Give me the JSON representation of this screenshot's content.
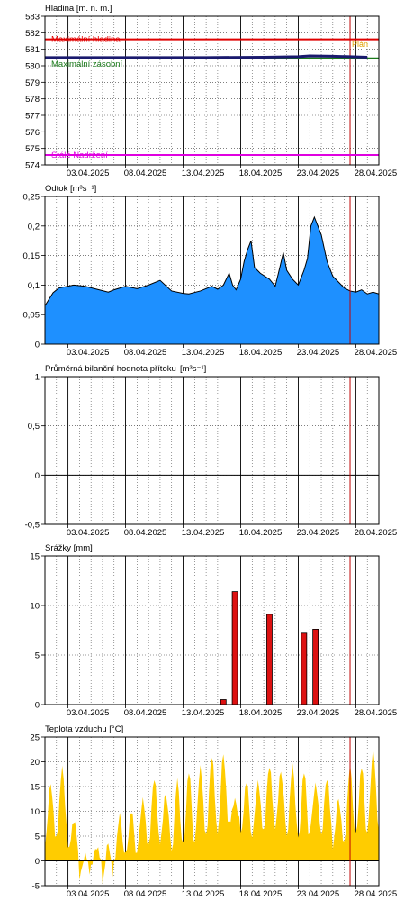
{
  "dates": [
    "03.04.2025",
    "08.04.2025",
    "13.04.2025",
    "18.04.2025",
    "23.04.2025",
    "28.04.2025"
  ],
  "colors": {
    "grid_major": "#000000",
    "grid_minor": "#000000",
    "now_line": "#c00000",
    "level_line": "#1a1a6e",
    "max_level": "#e00000",
    "max_storage": "#1a7a1a",
    "dead_storage": "#e000e0",
    "flow_fill": "#1e90ff",
    "flow_line": "#000000",
    "precip_fill": "#dd1111",
    "temp_fill": "#ffcc00"
  },
  "chart_data": [
    {
      "type": "line",
      "title": "Hladina [m. n. m.]",
      "ylim": [
        574,
        583
      ],
      "yticks": [
        583,
        582,
        581,
        580,
        579,
        578,
        577,
        576,
        575,
        574
      ],
      "x_start": "01.04.2025",
      "x_end": "30.04.2025",
      "reference_lines": [
        {
          "name": "Maximální hladina",
          "value": 581.6,
          "color_key": "max_level"
        },
        {
          "name": "Maximální zásobní",
          "value": 580.45,
          "color_key": "max_storage"
        },
        {
          "name": "Stálé Nadržení",
          "value": 574.6,
          "color_key": "dead_storage"
        }
      ],
      "now_label": "Plán",
      "series": [
        {
          "x": [
            "01.04.2025",
            "05.04.2025",
            "10.04.2025",
            "15.04.2025",
            "20.04.2025",
            "23.04.2025",
            "24.04.2025",
            "26.04.2025",
            "29.04.2025"
          ],
          "values": [
            580.5,
            580.5,
            580.5,
            580.5,
            580.52,
            580.55,
            580.6,
            580.58,
            580.52
          ]
        }
      ]
    },
    {
      "type": "area",
      "title": "Odtok [m³s⁻¹]",
      "ylim": [
        0,
        0.25
      ],
      "yticks": [
        "0,25",
        "0,2",
        "0,15",
        "0,1",
        "0,05",
        "0"
      ],
      "ytick_values": [
        0.25,
        0.2,
        0.15,
        0.1,
        0.05,
        0
      ],
      "x_start": "01.04.2025",
      "x_end": "30.04.2025",
      "series": [
        {
          "x": [
            0,
            0.7,
            1.2,
            2.5,
            3.5,
            4.5,
            5.5,
            6,
            7,
            8,
            9,
            10,
            11,
            12,
            12.5,
            13.5,
            14.5,
            15,
            15.5,
            16,
            16.3,
            16.6,
            17,
            17.3,
            17.6,
            17.9,
            18.2,
            18.7,
            19.5,
            20,
            20.4,
            20.7,
            21,
            21.5,
            22,
            22.5,
            22.8,
            23.1,
            23.4,
            23.7,
            24,
            24.5,
            25,
            25.5,
            26,
            26.5,
            27,
            27.5,
            28,
            28.5,
            29
          ],
          "values": [
            0.065,
            0.087,
            0.095,
            0.1,
            0.098,
            0.093,
            0.088,
            0.092,
            0.098,
            0.094,
            0.1,
            0.108,
            0.09,
            0.086,
            0.085,
            0.09,
            0.098,
            0.093,
            0.1,
            0.12,
            0.1,
            0.092,
            0.11,
            0.14,
            0.16,
            0.175,
            0.13,
            0.12,
            0.11,
            0.098,
            0.13,
            0.155,
            0.125,
            0.11,
            0.1,
            0.125,
            0.145,
            0.2,
            0.215,
            0.2,
            0.185,
            0.14,
            0.115,
            0.105,
            0.095,
            0.09,
            0.088,
            0.092,
            0.085,
            0.088,
            0.085
          ]
        }
      ]
    },
    {
      "type": "bar",
      "title": "Průměrná bilanční hodnota přítoku",
      "unit": "[m³s⁻¹]",
      "ylim": [
        -0.5,
        1
      ],
      "yticks": [
        "1",
        "0,5",
        "0",
        "-0,5"
      ],
      "ytick_values": [
        1,
        0.5,
        0,
        -0.5
      ],
      "x_start": "01.04.2025",
      "x_end": "30.04.2025",
      "values": []
    },
    {
      "type": "bar",
      "title": "Srážky [mm]",
      "ylim": [
        0,
        15
      ],
      "yticks": [
        15,
        10,
        5,
        0
      ],
      "x_start": "01.04.2025",
      "x_end": "30.04.2025",
      "bars": [
        {
          "date": "16.04.2025",
          "value": 0.5
        },
        {
          "date": "17.04.2025",
          "value": 11.4
        },
        {
          "date": "20.04.2025",
          "value": 9.1
        },
        {
          "date": "23.04.2025",
          "value": 7.2
        },
        {
          "date": "24.04.2025",
          "value": 7.6
        }
      ]
    },
    {
      "type": "area",
      "title": "Teplota vzduchu [°C]",
      "ylim": [
        -5,
        25
      ],
      "yticks": [
        25,
        20,
        15,
        10,
        5,
        0,
        -5
      ],
      "x_start": "01.04.2025",
      "x_end": "30.04.2025",
      "daily_min": [
        3.5,
        5,
        2,
        -3.5,
        -1,
        -4,
        0,
        1,
        2,
        3,
        4,
        2,
        3,
        4,
        5,
        6,
        8,
        5,
        5,
        6,
        7,
        5,
        4,
        6,
        5,
        3,
        4,
        5,
        6
      ],
      "daily_max": [
        15.5,
        18.5,
        8,
        1.5,
        3,
        3.5,
        9,
        10,
        12.5,
        17,
        13.5,
        16,
        18,
        19,
        21.5,
        21.5,
        12,
        16,
        16,
        19.5,
        18,
        19,
        18,
        15.5,
        17,
        12.5,
        19,
        19,
        22.5
      ]
    }
  ]
}
